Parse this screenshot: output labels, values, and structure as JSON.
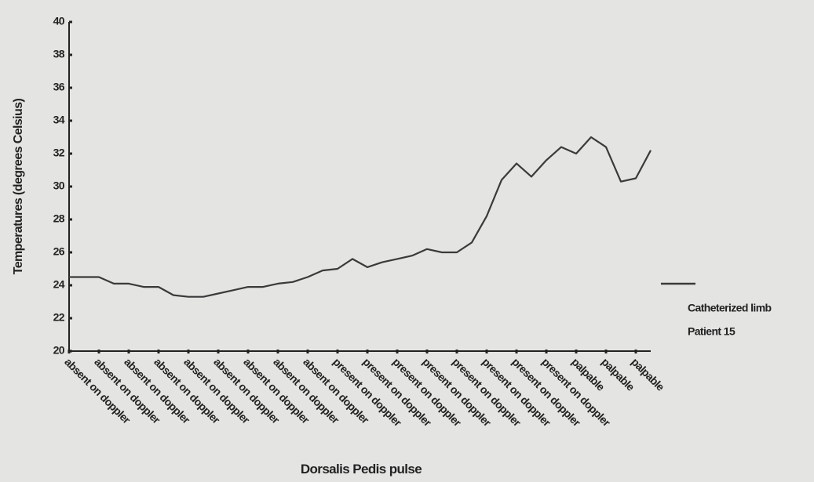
{
  "chart_data": {
    "type": "line",
    "x_label": "Dorsalis Pedis pulse",
    "y_label": "Temperatures (degrees Celsius)",
    "categories": [
      "absent on doppler",
      null,
      "absent on doppler",
      null,
      "absent on doppler",
      null,
      "absent on doppler",
      null,
      "absent on doppler",
      null,
      "absent on doppler",
      null,
      "absent on doppler",
      null,
      "absent on doppler",
      null,
      "absent on doppler",
      null,
      "present on doppler",
      null,
      "present on doppler",
      null,
      "present on doppler",
      null,
      "present on doppler",
      null,
      "present on doppler",
      null,
      "present on doppler",
      null,
      "present on doppler",
      null,
      "present on doppler",
      null,
      "palpable",
      null,
      "palpable",
      null,
      "palpable",
      null
    ],
    "series": [
      {
        "name": "Catheterized limb",
        "color": "#3a3a3a",
        "values": [
          24.5,
          24.5,
          24.5,
          24.1,
          24.1,
          23.9,
          23.9,
          23.4,
          23.3,
          23.3,
          23.5,
          23.7,
          23.9,
          23.9,
          24.1,
          24.2,
          24.5,
          24.9,
          25.0,
          25.6,
          25.1,
          25.4,
          25.6,
          25.8,
          26.2,
          26.0,
          26.0,
          26.6,
          28.2,
          30.4,
          31.4,
          30.6,
          31.6,
          32.4,
          32.0,
          33.0,
          32.4,
          30.3,
          30.5,
          32.2
        ]
      }
    ],
    "legend_subtitle": "Patient 15",
    "ylim": [
      20,
      40
    ],
    "yticks": [
      20,
      22,
      24,
      26,
      28,
      30,
      32,
      34,
      36,
      38,
      40
    ],
    "grid": false
  }
}
